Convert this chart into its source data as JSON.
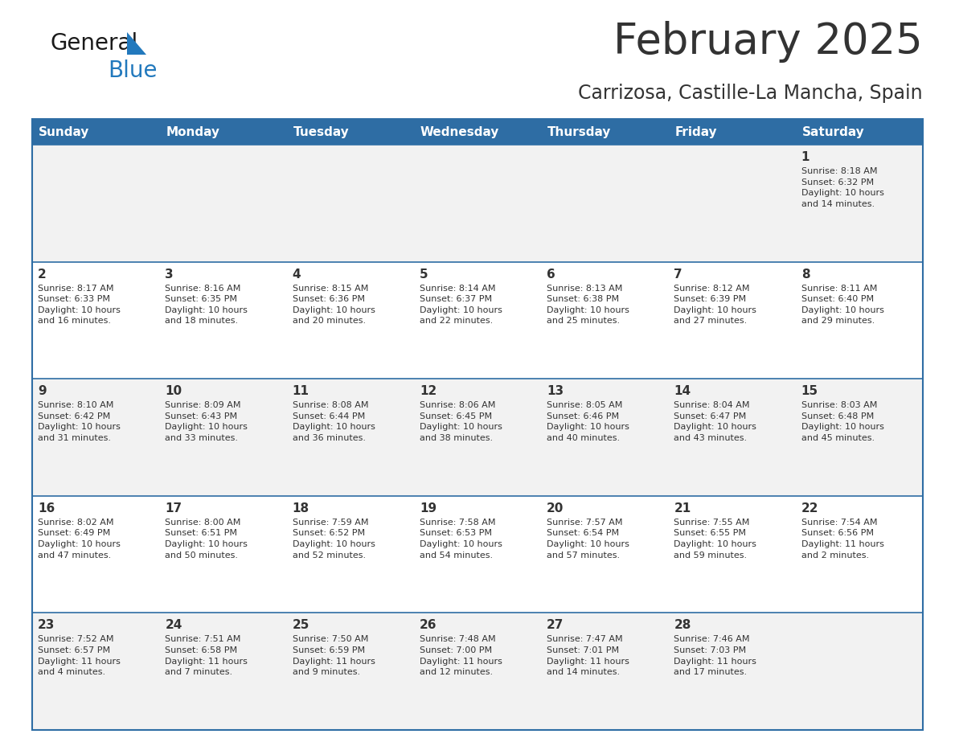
{
  "title": "February 2025",
  "subtitle": "Carrizosa, Castille-La Mancha, Spain",
  "header_bg": "#2E6DA4",
  "header_text_color": "#FFFFFF",
  "cell_bg_odd": "#F2F2F2",
  "cell_bg_even": "#FFFFFF",
  "border_color": "#2E6DA4",
  "text_color": "#333333",
  "day_headers": [
    "Sunday",
    "Monday",
    "Tuesday",
    "Wednesday",
    "Thursday",
    "Friday",
    "Saturday"
  ],
  "calendar_data": [
    [
      {
        "day": "",
        "info": ""
      },
      {
        "day": "",
        "info": ""
      },
      {
        "day": "",
        "info": ""
      },
      {
        "day": "",
        "info": ""
      },
      {
        "day": "",
        "info": ""
      },
      {
        "day": "",
        "info": ""
      },
      {
        "day": "1",
        "info": "Sunrise: 8:18 AM\nSunset: 6:32 PM\nDaylight: 10 hours\nand 14 minutes."
      }
    ],
    [
      {
        "day": "2",
        "info": "Sunrise: 8:17 AM\nSunset: 6:33 PM\nDaylight: 10 hours\nand 16 minutes."
      },
      {
        "day": "3",
        "info": "Sunrise: 8:16 AM\nSunset: 6:35 PM\nDaylight: 10 hours\nand 18 minutes."
      },
      {
        "day": "4",
        "info": "Sunrise: 8:15 AM\nSunset: 6:36 PM\nDaylight: 10 hours\nand 20 minutes."
      },
      {
        "day": "5",
        "info": "Sunrise: 8:14 AM\nSunset: 6:37 PM\nDaylight: 10 hours\nand 22 minutes."
      },
      {
        "day": "6",
        "info": "Sunrise: 8:13 AM\nSunset: 6:38 PM\nDaylight: 10 hours\nand 25 minutes."
      },
      {
        "day": "7",
        "info": "Sunrise: 8:12 AM\nSunset: 6:39 PM\nDaylight: 10 hours\nand 27 minutes."
      },
      {
        "day": "8",
        "info": "Sunrise: 8:11 AM\nSunset: 6:40 PM\nDaylight: 10 hours\nand 29 minutes."
      }
    ],
    [
      {
        "day": "9",
        "info": "Sunrise: 8:10 AM\nSunset: 6:42 PM\nDaylight: 10 hours\nand 31 minutes."
      },
      {
        "day": "10",
        "info": "Sunrise: 8:09 AM\nSunset: 6:43 PM\nDaylight: 10 hours\nand 33 minutes."
      },
      {
        "day": "11",
        "info": "Sunrise: 8:08 AM\nSunset: 6:44 PM\nDaylight: 10 hours\nand 36 minutes."
      },
      {
        "day": "12",
        "info": "Sunrise: 8:06 AM\nSunset: 6:45 PM\nDaylight: 10 hours\nand 38 minutes."
      },
      {
        "day": "13",
        "info": "Sunrise: 8:05 AM\nSunset: 6:46 PM\nDaylight: 10 hours\nand 40 minutes."
      },
      {
        "day": "14",
        "info": "Sunrise: 8:04 AM\nSunset: 6:47 PM\nDaylight: 10 hours\nand 43 minutes."
      },
      {
        "day": "15",
        "info": "Sunrise: 8:03 AM\nSunset: 6:48 PM\nDaylight: 10 hours\nand 45 minutes."
      }
    ],
    [
      {
        "day": "16",
        "info": "Sunrise: 8:02 AM\nSunset: 6:49 PM\nDaylight: 10 hours\nand 47 minutes."
      },
      {
        "day": "17",
        "info": "Sunrise: 8:00 AM\nSunset: 6:51 PM\nDaylight: 10 hours\nand 50 minutes."
      },
      {
        "day": "18",
        "info": "Sunrise: 7:59 AM\nSunset: 6:52 PM\nDaylight: 10 hours\nand 52 minutes."
      },
      {
        "day": "19",
        "info": "Sunrise: 7:58 AM\nSunset: 6:53 PM\nDaylight: 10 hours\nand 54 minutes."
      },
      {
        "day": "20",
        "info": "Sunrise: 7:57 AM\nSunset: 6:54 PM\nDaylight: 10 hours\nand 57 minutes."
      },
      {
        "day": "21",
        "info": "Sunrise: 7:55 AM\nSunset: 6:55 PM\nDaylight: 10 hours\nand 59 minutes."
      },
      {
        "day": "22",
        "info": "Sunrise: 7:54 AM\nSunset: 6:56 PM\nDaylight: 11 hours\nand 2 minutes."
      }
    ],
    [
      {
        "day": "23",
        "info": "Sunrise: 7:52 AM\nSunset: 6:57 PM\nDaylight: 11 hours\nand 4 minutes."
      },
      {
        "day": "24",
        "info": "Sunrise: 7:51 AM\nSunset: 6:58 PM\nDaylight: 11 hours\nand 7 minutes."
      },
      {
        "day": "25",
        "info": "Sunrise: 7:50 AM\nSunset: 6:59 PM\nDaylight: 11 hours\nand 9 minutes."
      },
      {
        "day": "26",
        "info": "Sunrise: 7:48 AM\nSunset: 7:00 PM\nDaylight: 11 hours\nand 12 minutes."
      },
      {
        "day": "27",
        "info": "Sunrise: 7:47 AM\nSunset: 7:01 PM\nDaylight: 11 hours\nand 14 minutes."
      },
      {
        "day": "28",
        "info": "Sunrise: 7:46 AM\nSunset: 7:03 PM\nDaylight: 11 hours\nand 17 minutes."
      },
      {
        "day": "",
        "info": ""
      }
    ]
  ],
  "logo_text_general": "General",
  "logo_text_blue": "Blue",
  "logo_color_general": "#1a1a1a",
  "logo_color_blue": "#2279BD",
  "logo_triangle_color": "#2279BD",
  "title_fontsize": 38,
  "subtitle_fontsize": 17,
  "header_fontsize": 11,
  "day_num_fontsize": 11,
  "info_fontsize": 8
}
